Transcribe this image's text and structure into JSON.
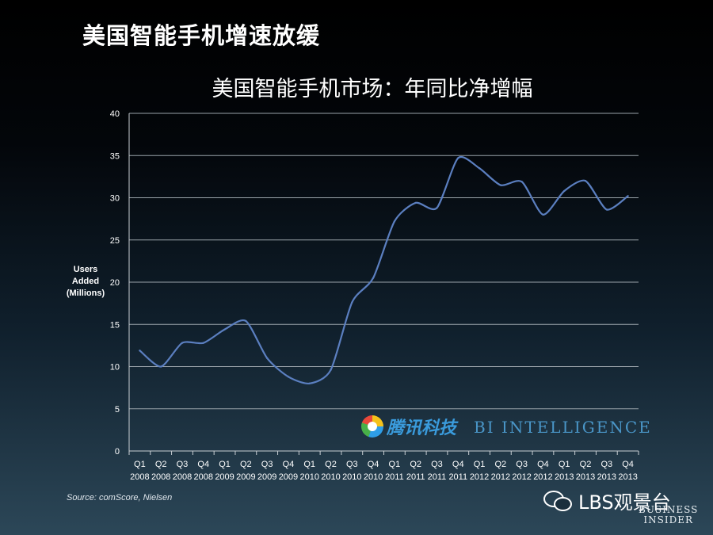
{
  "slide": {
    "title": "美国智能手机增速放缓",
    "source": "Source: comScore, Nielsen"
  },
  "chart_data": {
    "type": "line",
    "title": "美国智能手机市场：年同比净增幅",
    "ylabel": "Users Added (Millions)",
    "ylabel_lines": [
      "Users",
      "Added",
      "(Millions)"
    ],
    "ylim": [
      0,
      40
    ],
    "yticks": [
      0,
      5,
      10,
      15,
      20,
      25,
      30,
      35,
      40
    ],
    "grid": true,
    "categories": [
      {
        "q": "Q1",
        "y": "2008"
      },
      {
        "q": "Q2",
        "y": "2008"
      },
      {
        "q": "Q3",
        "y": "2008"
      },
      {
        "q": "Q4",
        "y": "2008"
      },
      {
        "q": "Q1",
        "y": "2009"
      },
      {
        "q": "Q2",
        "y": "2009"
      },
      {
        "q": "Q3",
        "y": "2009"
      },
      {
        "q": "Q4",
        "y": "2009"
      },
      {
        "q": "Q1",
        "y": "2010"
      },
      {
        "q": "Q2",
        "y": "2010"
      },
      {
        "q": "Q3",
        "y": "2010"
      },
      {
        "q": "Q4",
        "y": "2010"
      },
      {
        "q": "Q1",
        "y": "2011"
      },
      {
        "q": "Q2",
        "y": "2011"
      },
      {
        "q": "Q3",
        "y": "2011"
      },
      {
        "q": "Q4",
        "y": "2011"
      },
      {
        "q": "Q1",
        "y": "2012"
      },
      {
        "q": "Q2",
        "y": "2012"
      },
      {
        "q": "Q3",
        "y": "2012"
      },
      {
        "q": "Q4",
        "y": "2012"
      },
      {
        "q": "Q1",
        "y": "2013"
      },
      {
        "q": "Q2",
        "y": "2013"
      },
      {
        "q": "Q3",
        "y": "2013"
      },
      {
        "q": "Q4",
        "y": "2013"
      }
    ],
    "series": [
      {
        "values": [
          11.9,
          10.0,
          12.8,
          12.8,
          14.4,
          15.4,
          11.0,
          8.8,
          8.0,
          9.6,
          17.6,
          20.5,
          27.2,
          29.4,
          28.8,
          34.7,
          33.5,
          31.5,
          31.9,
          28.0,
          30.8,
          32.0,
          28.6,
          30.2
        ],
        "color": "#5b7fc0"
      }
    ]
  },
  "watermarks": {
    "tencent": "腾讯科技",
    "bi": "BI INTELLIGENCE",
    "wechat": "LBS观景台",
    "bi_line1": "BUSINESS",
    "bi_line2": "INSIDER"
  }
}
